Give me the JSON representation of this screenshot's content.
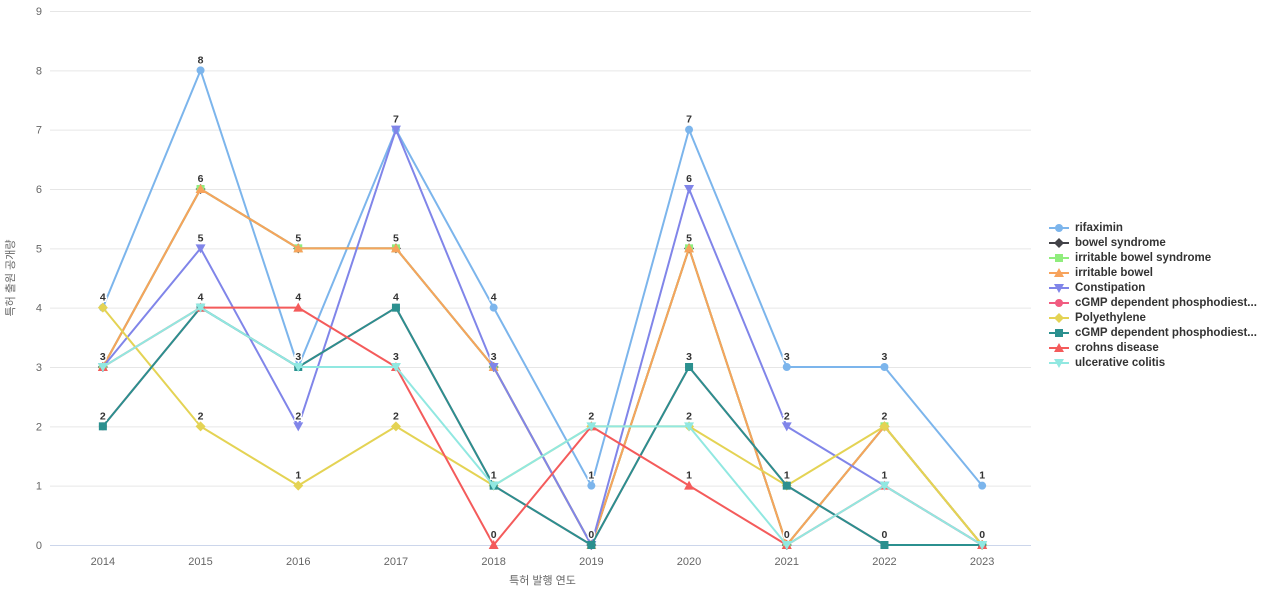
{
  "chart_data": {
    "type": "line",
    "title": "",
    "xlabel": "특허 발행 연도",
    "ylabel": "특허 출원 공개량",
    "categories": [
      "2014",
      "2015",
      "2016",
      "2017",
      "2018",
      "2019",
      "2020",
      "2021",
      "2022",
      "2023"
    ],
    "ylim": [
      0,
      9
    ],
    "yticks": [
      0,
      1,
      2,
      3,
      4,
      5,
      6,
      7,
      8,
      9
    ],
    "grid": true,
    "data_labels": true,
    "legend_position": "right",
    "axis_text_color": "#666666",
    "grid_color": "#e6e6e6",
    "axis_line_color": "#ccd6eb",
    "label_color": "#333333",
    "series": [
      {
        "name": "rifaximin",
        "color": "#7cb5ec",
        "marker": "circle",
        "values": [
          4,
          8,
          3,
          7,
          4,
          1,
          7,
          3,
          3,
          1
        ]
      },
      {
        "name": "bowel syndrome",
        "color": "#434348",
        "marker": "diamond",
        "values": [
          3,
          6,
          5,
          5,
          3,
          0,
          5,
          0,
          2,
          0
        ]
      },
      {
        "name": "irritable bowel syndrome",
        "color": "#90ed7d",
        "marker": "square",
        "values": [
          3,
          6,
          5,
          5,
          3,
          0,
          5,
          0,
          2,
          0
        ]
      },
      {
        "name": "irritable bowel",
        "color": "#f7a35c",
        "marker": "triangle",
        "values": [
          3,
          6,
          5,
          5,
          3,
          0,
          5,
          0,
          2,
          0
        ]
      },
      {
        "name": "Constipation",
        "color": "#8085e9",
        "marker": "triangle-down",
        "values": [
          3,
          5,
          2,
          7,
          3,
          0,
          6,
          2,
          1,
          0
        ]
      },
      {
        "name": "cGMP dependent phosphodiest...",
        "color": "#f15c80",
        "marker": "circle",
        "values": [
          2,
          4,
          3,
          4,
          1,
          0,
          3,
          1,
          0,
          0
        ]
      },
      {
        "name": "Polyethylene",
        "color": "#e4d354",
        "marker": "diamond",
        "values": [
          4,
          2,
          1,
          2,
          1,
          2,
          2,
          1,
          2,
          0
        ]
      },
      {
        "name": "cGMP dependent phosphodiest...",
        "color": "#2b908f",
        "marker": "square",
        "values": [
          2,
          4,
          3,
          4,
          1,
          0,
          3,
          1,
          0,
          0
        ]
      },
      {
        "name": "crohns disease",
        "color": "#f45b5b",
        "marker": "triangle",
        "values": [
          3,
          4,
          4,
          3,
          0,
          2,
          1,
          0,
          1,
          0
        ]
      },
      {
        "name": "ulcerative colitis",
        "color": "#91e8e1",
        "marker": "triangle-down",
        "values": [
          3,
          4,
          3,
          3,
          1,
          2,
          2,
          0,
          1,
          0
        ]
      }
    ]
  }
}
